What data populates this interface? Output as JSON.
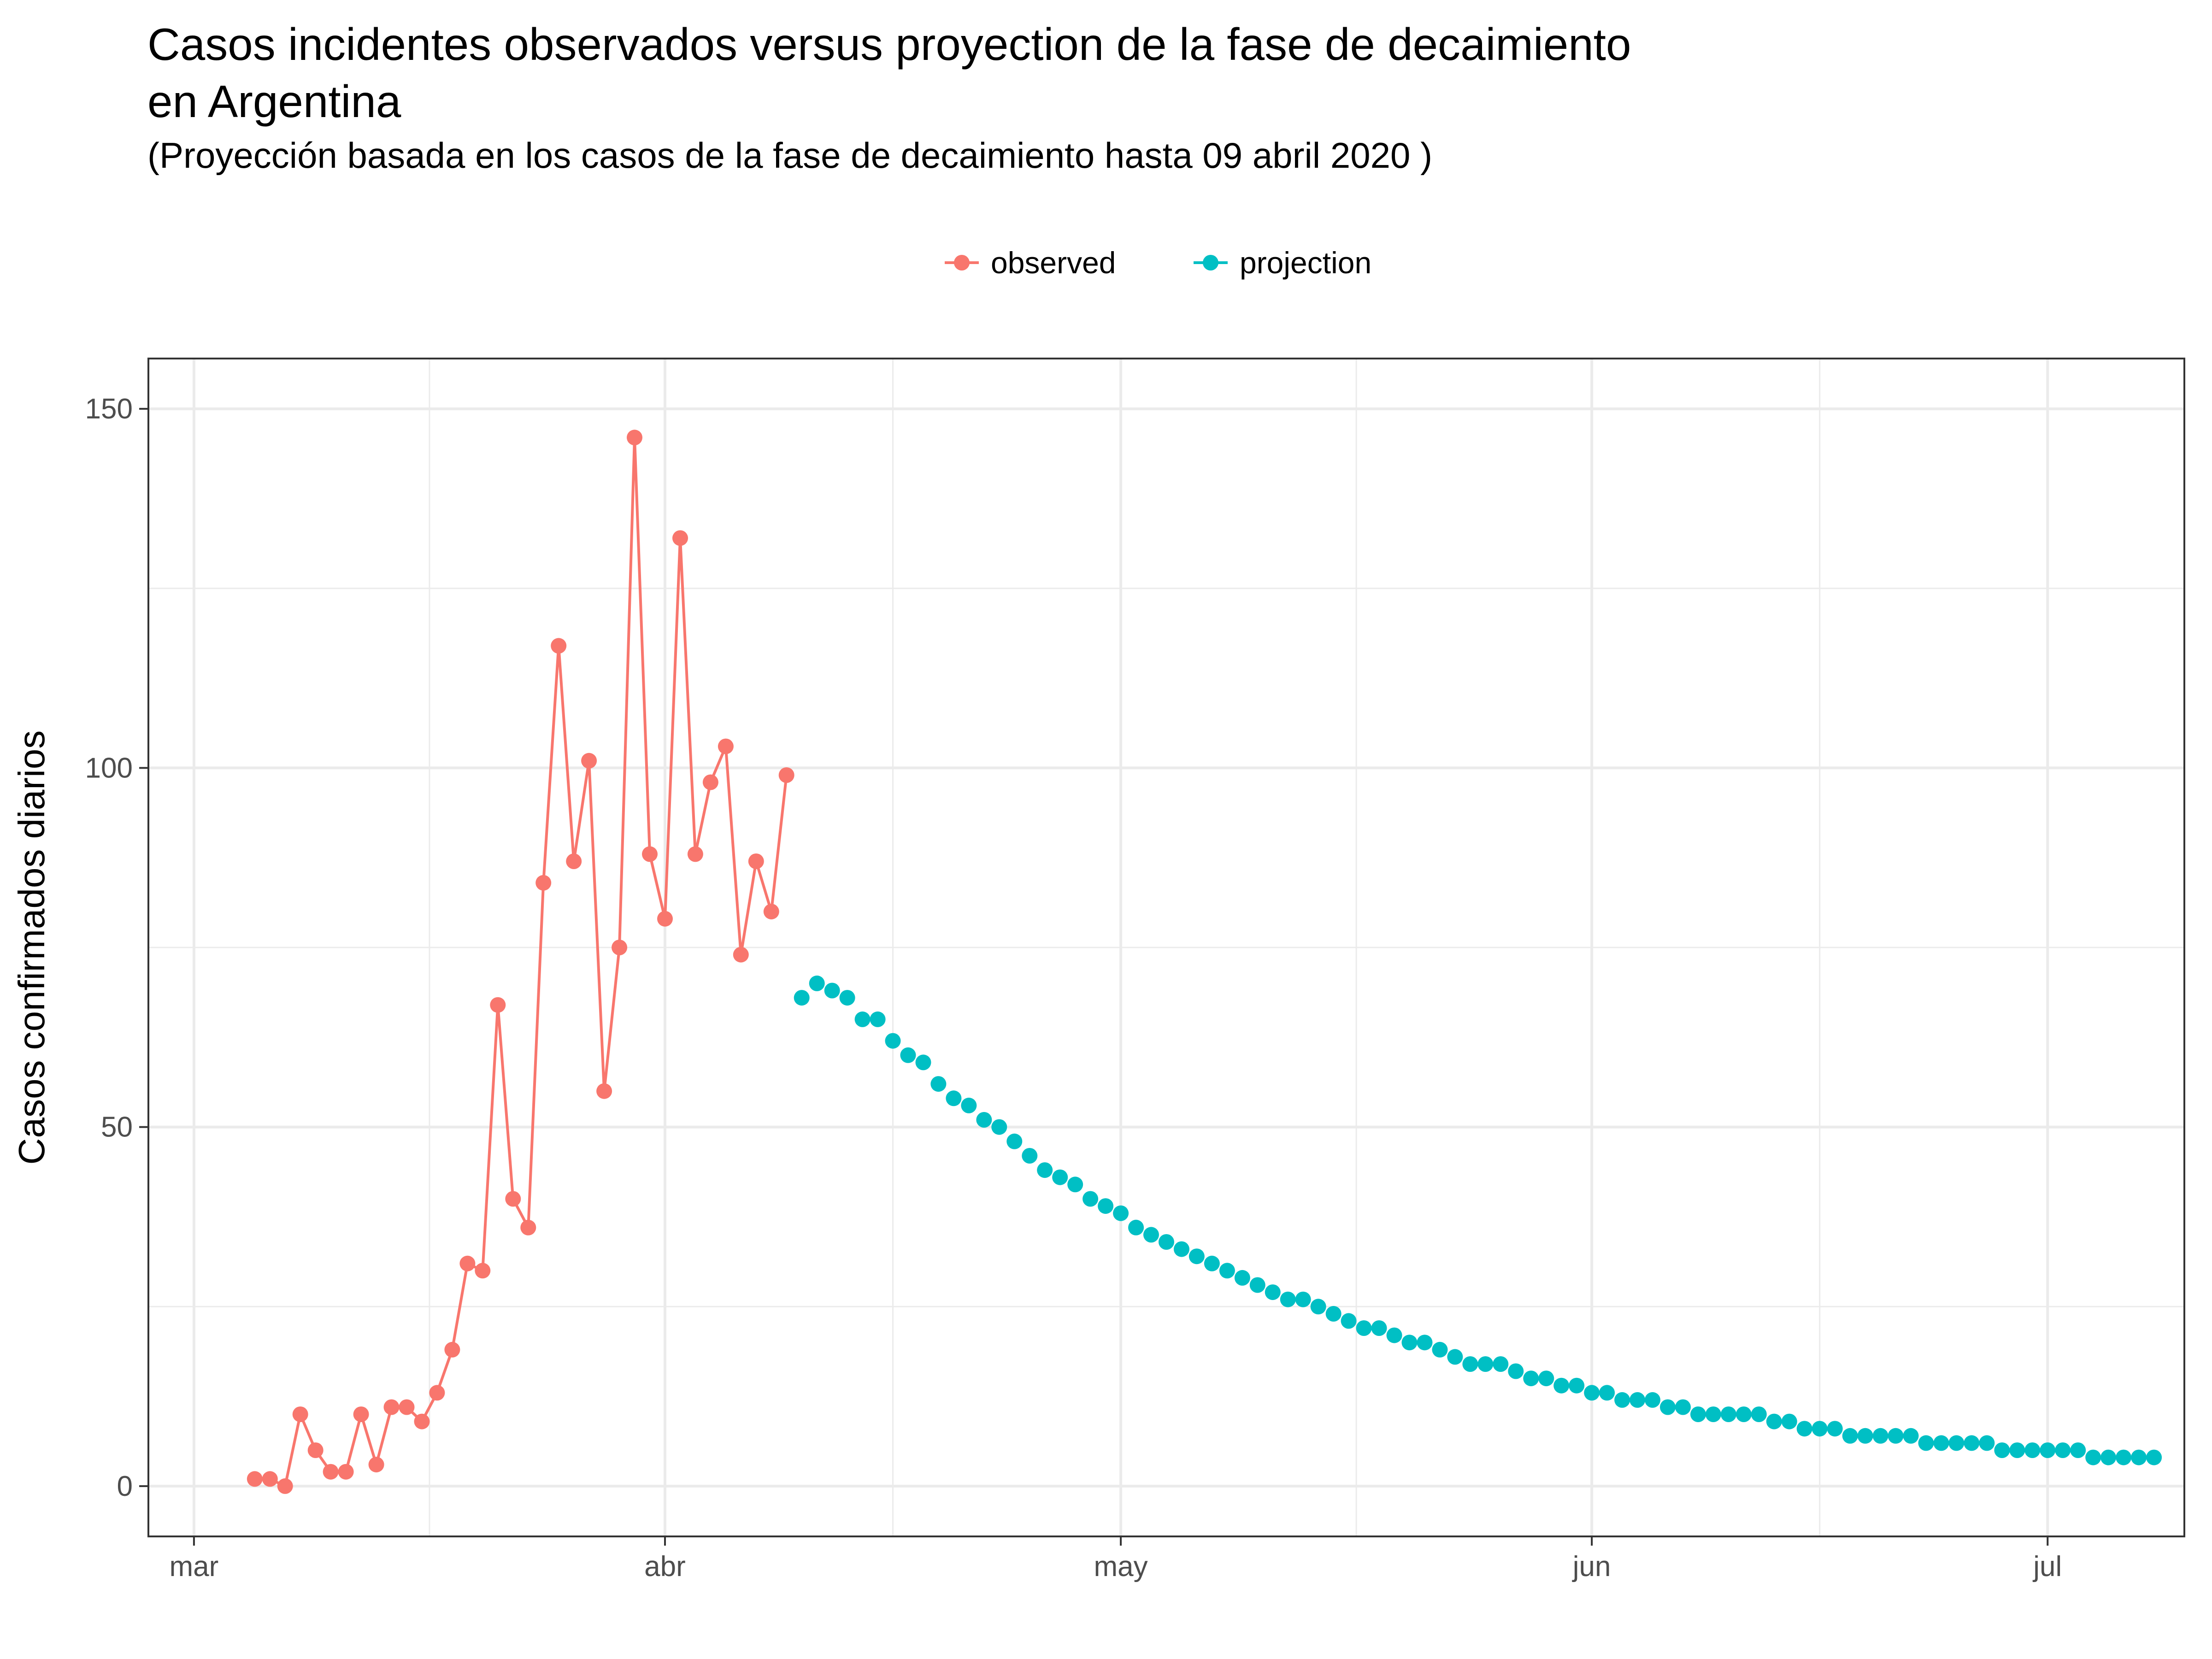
{
  "chart_data": {
    "type": "line",
    "title": "Casos incidentes observados versus proyection de la fase de decaimiento\nen Argentina",
    "subtitle": "(Proyección basada en los casos de la fase de decaimiento hasta  09 abril 2020 )",
    "xlabel": "",
    "ylabel": "Casos confirmados diarios",
    "x_ticks": [
      {
        "label": "mar",
        "date": "2020-03-01"
      },
      {
        "label": "abr",
        "date": "2020-04-01"
      },
      {
        "label": "may",
        "date": "2020-05-01"
      },
      {
        "label": "jun",
        "date": "2020-06-01"
      },
      {
        "label": "jul",
        "date": "2020-07-01"
      }
    ],
    "y_ticks": [
      0,
      50,
      100,
      150
    ],
    "xlim": [
      "2020-02-27",
      "2020-07-10"
    ],
    "ylim": [
      -7,
      157
    ],
    "grid": true,
    "legend_position": "top",
    "series": [
      {
        "name": "observed",
        "color": "#F8766D",
        "start_date": "2020-03-05",
        "values": [
          1,
          1,
          0,
          10,
          5,
          2,
          2,
          10,
          3,
          11,
          11,
          9,
          13,
          19,
          31,
          30,
          67,
          40,
          36,
          84,
          117,
          87,
          101,
          55,
          75,
          146,
          88,
          79,
          132,
          88,
          98,
          103,
          74,
          87,
          80,
          99
        ]
      },
      {
        "name": "projection",
        "color": "#00BFC4",
        "start_date": "2020-04-10",
        "values": [
          68,
          70,
          69,
          68,
          65,
          65,
          62,
          60,
          59,
          56,
          54,
          53,
          51,
          50,
          48,
          46,
          44,
          43,
          42,
          40,
          39,
          38,
          36,
          35,
          34,
          33,
          32,
          31,
          30,
          29,
          28,
          27,
          26,
          26,
          25,
          24,
          23,
          22,
          22,
          21,
          20,
          20,
          19,
          18,
          17,
          17,
          17,
          16,
          15,
          15,
          14,
          14,
          13,
          13,
          12,
          12,
          12,
          11,
          11,
          10,
          10,
          10,
          10,
          10,
          9,
          9,
          8,
          8,
          8,
          7,
          7,
          7,
          7,
          7,
          6,
          6,
          6,
          6,
          6,
          5,
          5,
          5,
          5,
          5,
          5,
          4,
          4,
          4,
          4,
          4
        ]
      }
    ]
  }
}
